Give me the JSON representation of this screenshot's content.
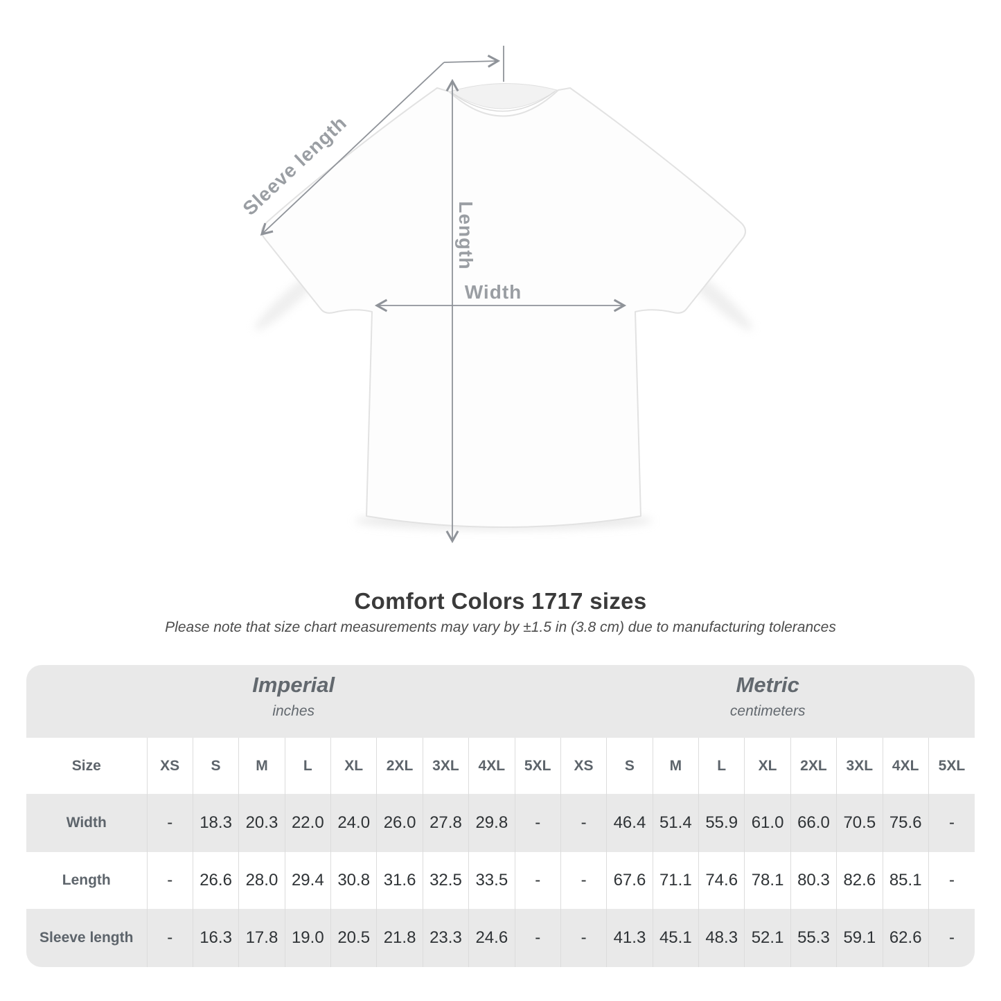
{
  "heading": {
    "title": "Comfort Colors 1717 sizes",
    "note": "Please note that size chart measurements may vary by ±1.5 in (3.8 cm) due to manufacturing tolerances"
  },
  "diagram": {
    "labels": {
      "sleeve_length": "Sleeve length",
      "length": "Length",
      "width": "Width"
    },
    "line_color": "#8f9399",
    "label_color": "#9a9ea3"
  },
  "chart_data": {
    "type": "table",
    "title": "Comfort Colors 1717 sizes",
    "corner_label": "Size",
    "column_groups": [
      {
        "label": "Imperial",
        "unit": "inches"
      },
      {
        "label": "Metric",
        "unit": "centimeters"
      }
    ],
    "sizes": [
      "XS",
      "S",
      "M",
      "L",
      "XL",
      "2XL",
      "3XL",
      "4XL",
      "5XL"
    ],
    "rows": [
      {
        "label": "Width",
        "imperial": [
          "-",
          "18.3",
          "20.3",
          "22.0",
          "24.0",
          "26.0",
          "27.8",
          "29.8",
          "-"
        ],
        "metric": [
          "-",
          "46.4",
          "51.4",
          "55.9",
          "61.0",
          "66.0",
          "70.5",
          "75.6",
          "-"
        ]
      },
      {
        "label": "Length",
        "imperial": [
          "-",
          "26.6",
          "28.0",
          "29.4",
          "30.8",
          "31.6",
          "32.5",
          "33.5",
          "-"
        ],
        "metric": [
          "-",
          "67.6",
          "71.1",
          "74.6",
          "78.1",
          "80.3",
          "82.6",
          "85.1",
          "-"
        ]
      },
      {
        "label": "Sleeve length",
        "imperial": [
          "-",
          "16.3",
          "17.8",
          "19.0",
          "20.5",
          "21.8",
          "23.3",
          "24.6",
          "-"
        ],
        "metric": [
          "-",
          "41.3",
          "45.1",
          "48.3",
          "52.1",
          "55.3",
          "59.1",
          "62.6",
          "-"
        ]
      }
    ],
    "colors": {
      "band_background": "#e9e9e9",
      "stripe_background": "#e9e9e9",
      "separator": "#dcdcdc",
      "header_text": "#5d646b",
      "value_text": "#2f3336"
    }
  }
}
